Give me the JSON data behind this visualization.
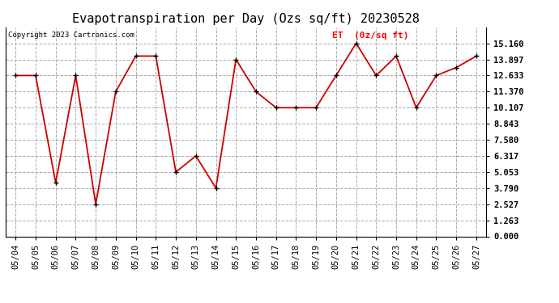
{
  "title": "Evapotranspiration per Day (Ozs sq/ft) 20230528",
  "copyright": "Copyright 2023 Cartronics.com",
  "legend_label": "ET  (0z/sq ft)",
  "dates": [
    "05/04",
    "05/05",
    "05/06",
    "05/07",
    "05/08",
    "05/09",
    "05/10",
    "05/11",
    "05/12",
    "05/13",
    "05/14",
    "05/15",
    "05/16",
    "05/17",
    "05/18",
    "05/19",
    "05/20",
    "05/21",
    "05/22",
    "05/23",
    "05/24",
    "05/25",
    "05/26",
    "05/27"
  ],
  "values": [
    12.633,
    12.633,
    4.21,
    12.633,
    2.527,
    11.37,
    14.16,
    14.16,
    5.053,
    6.317,
    3.79,
    13.897,
    11.37,
    10.107,
    10.107,
    10.107,
    12.633,
    15.16,
    12.633,
    14.16,
    10.107,
    12.633,
    13.264,
    14.16
  ],
  "ylim": [
    0.0,
    16.423
  ],
  "yticks": [
    0.0,
    1.263,
    2.527,
    3.79,
    5.053,
    6.317,
    7.58,
    8.843,
    10.107,
    11.37,
    12.633,
    13.897,
    15.16
  ],
  "line_color": "#cc0000",
  "marker_color": "black",
  "bg_color": "#ffffff",
  "grid_color": "#aaaaaa",
  "title_fontsize": 11,
  "tick_fontsize": 7.5,
  "copyright_fontsize": 6.5,
  "legend_fontsize": 8
}
